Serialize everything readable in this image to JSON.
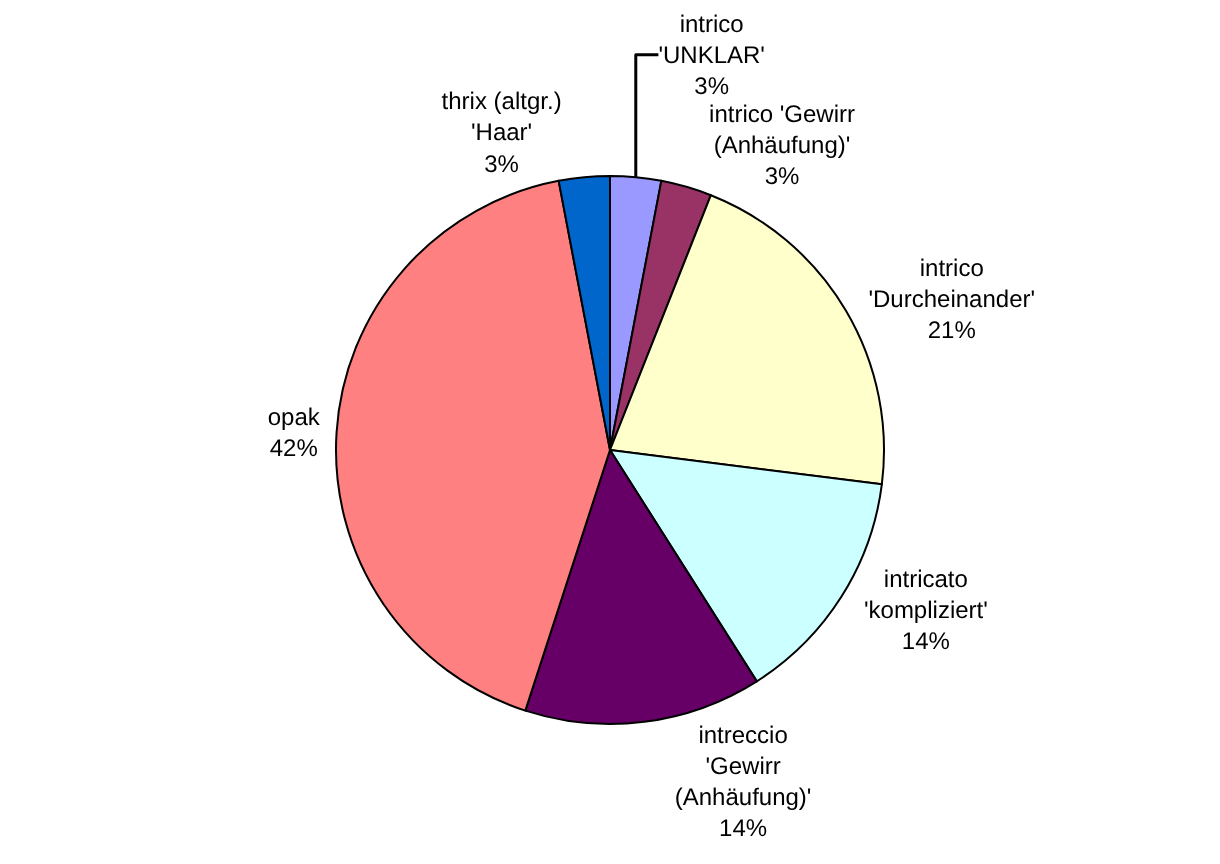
{
  "chart_data": {
    "type": "pie",
    "categories": [
      "intrico 'UNKLAR'",
      "intrico 'Gewirr (Anhäufung)'",
      "intrico 'Durcheinander'",
      "intricato 'kompliziert'",
      "intreccio 'Gewirr (Anhäufung)'",
      "opak",
      "thrix (altgr.) 'Haar'"
    ],
    "values": [
      3,
      3,
      21,
      14,
      14,
      42,
      3
    ],
    "value_labels": [
      "3%",
      "3%",
      "21%",
      "14%",
      "14%",
      "42%",
      "3%"
    ],
    "colors": [
      "#9999ff",
      "#993366",
      "#ffffcc",
      "#ccffff",
      "#660066",
      "#ff8080",
      "#0066cc"
    ],
    "legend": false
  }
}
